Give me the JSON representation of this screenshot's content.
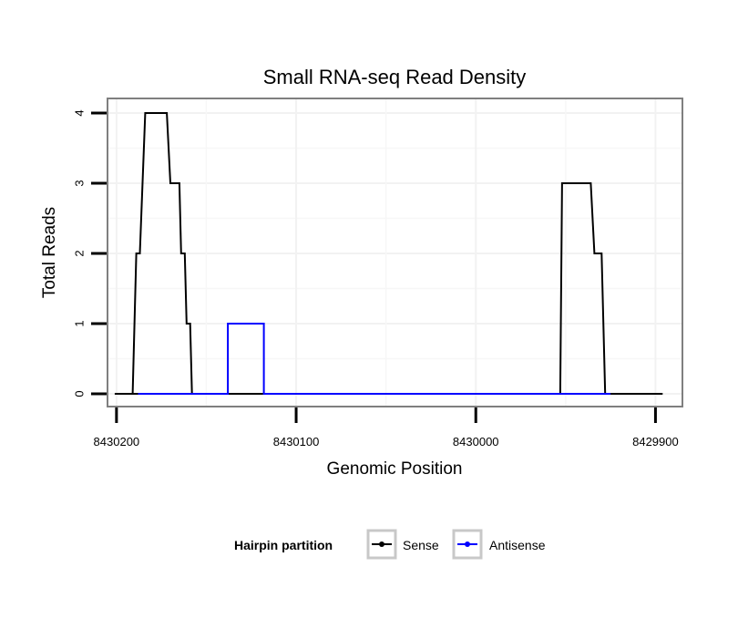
{
  "chart_data": {
    "type": "line",
    "title": "Small RNA-seq Read Density",
    "xlabel": "Genomic Position",
    "ylabel": "Total Reads",
    "x_reversed": true,
    "xlim": [
      8430205,
      8429885
    ],
    "ylim": [
      0,
      4
    ],
    "x_ticks": [
      8430200,
      8430100,
      8430000,
      8429900
    ],
    "x_tick_labels": [
      "8430200",
      "8430100",
      "8430000",
      "8429900"
    ],
    "y_ticks": [
      0,
      1,
      2,
      3,
      4
    ],
    "y_tick_labels": [
      "0",
      "1",
      "2",
      "3",
      "4"
    ],
    "grid": true,
    "legend": {
      "title": "Hairpin partition",
      "position": "bottom"
    },
    "series": [
      {
        "name": "Sense",
        "color": "#000000",
        "x": [
          8430201,
          8430173,
          8430191,
          8430189,
          8430187,
          8430184,
          8430182,
          8430172,
          8430170,
          8430165,
          8430164,
          8430162,
          8430161,
          8430159,
          8430158,
          8430155,
          8429958,
          8429953,
          8429952,
          8429936,
          8429934,
          8429930,
          8429928,
          8429923,
          8429896
        ],
        "y": [
          0,
          0,
          0,
          2,
          2,
          4,
          4,
          4,
          3,
          3,
          2,
          2,
          1,
          1,
          0,
          0,
          0,
          0,
          3,
          3,
          2,
          2,
          0,
          0,
          0
        ]
      },
      {
        "name": "Antisense",
        "color": "#0000ff",
        "x": [
          8430188,
          8430138,
          8430138,
          8430118,
          8430118,
          8429953,
          8429925
        ],
        "y": [
          0,
          0,
          1,
          1,
          0,
          0,
          0
        ]
      }
    ]
  }
}
